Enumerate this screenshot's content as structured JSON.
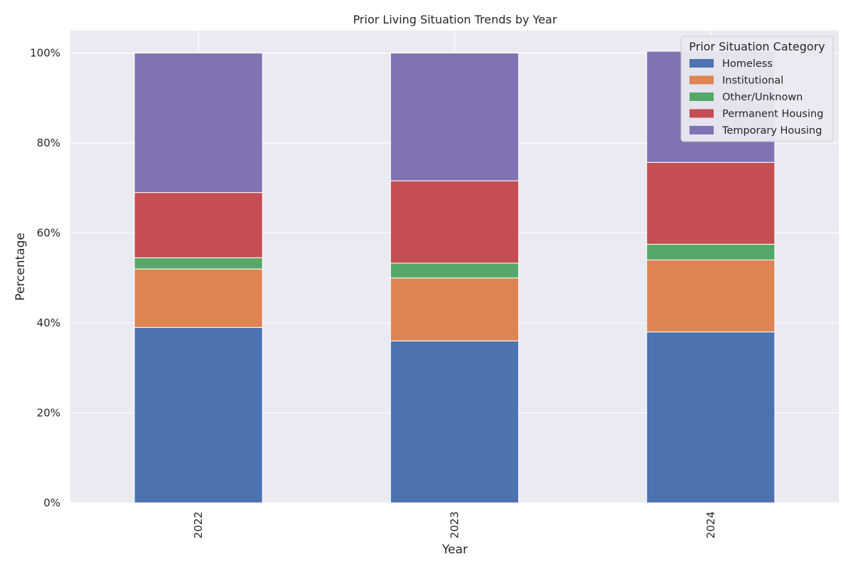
{
  "chart_data": {
    "type": "bar",
    "stacked": true,
    "title": "Prior Living Situation Trends by Year",
    "xlabel": "Year",
    "ylabel": "Percentage",
    "categories": [
      "2022",
      "2023",
      "2024"
    ],
    "ylim": [
      0,
      1.05
    ],
    "yticks": [
      {
        "value": 0.0,
        "label": "0%"
      },
      {
        "value": 0.2,
        "label": "20%"
      },
      {
        "value": 0.4,
        "label": "40%"
      },
      {
        "value": 0.6,
        "label": "60%"
      },
      {
        "value": 0.8,
        "label": "80%"
      },
      {
        "value": 1.0,
        "label": "100%"
      }
    ],
    "grid": true,
    "legend": {
      "title": "Prior Situation Category",
      "placement": "top-right"
    },
    "series": [
      {
        "name": "Homeless",
        "color": "#4c72b0",
        "values": [
          0.39,
          0.36,
          0.38
        ]
      },
      {
        "name": "Institutional",
        "color": "#dd8452",
        "values": [
          0.13,
          0.14,
          0.16
        ]
      },
      {
        "name": "Other/Unknown",
        "color": "#55a868",
        "values": [
          0.025,
          0.033,
          0.035
        ]
      },
      {
        "name": "Permanent Housing",
        "color": "#c44e52",
        "values": [
          0.145,
          0.183,
          0.182
        ]
      },
      {
        "name": "Temporary Housing",
        "color": "#8172b3",
        "values": [
          0.31,
          0.284,
          0.247
        ]
      }
    ]
  },
  "colors": {
    "background": "#eaeaf2",
    "grid": "#ffffff",
    "text": "#262626"
  }
}
